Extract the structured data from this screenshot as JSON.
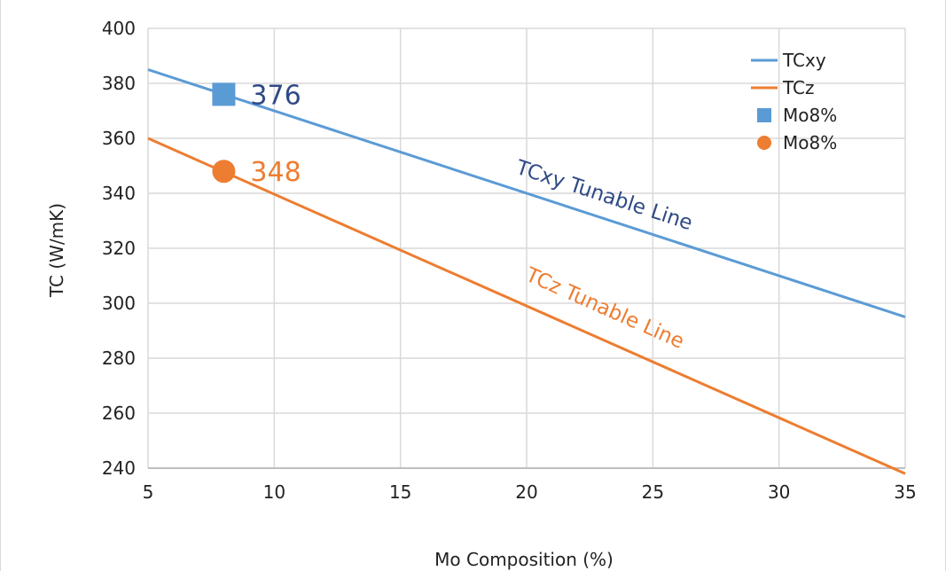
{
  "chart_data": {
    "type": "line",
    "xlabel": "Mo Composition (%)",
    "ylabel": "TC  (W/mK)",
    "xlim": [
      5,
      35
    ],
    "ylim": [
      240,
      400
    ],
    "x_ticks": [
      "5",
      "10",
      "15",
      "20",
      "25",
      "30",
      "35"
    ],
    "y_ticks": [
      "240",
      "260",
      "280",
      "300",
      "320",
      "340",
      "360",
      "380",
      "400"
    ],
    "grid": true,
    "legend_position": "top-right",
    "colors": {
      "tcxy": "#5b9bd5",
      "tcz": "#ed7d31",
      "tcxy_label": "#2f4a86",
      "axis": "#222222",
      "grid": "#d9d9d9"
    },
    "series": [
      {
        "name": "TCxy",
        "kind": "line",
        "x": [
          5,
          35
        ],
        "y": [
          385,
          295
        ]
      },
      {
        "name": "TCz",
        "kind": "line",
        "x": [
          5,
          35
        ],
        "y": [
          360,
          238
        ]
      },
      {
        "name": "Mo8%",
        "kind": "point",
        "marker": "square",
        "x": [
          8
        ],
        "y": [
          376
        ],
        "label": "376"
      },
      {
        "name": "Mo8%",
        "kind": "point",
        "marker": "circle",
        "x": [
          8
        ],
        "y": [
          348
        ],
        "label": "348"
      }
    ],
    "annotations": [
      {
        "text": "TCxy Tunable Line",
        "x": 23,
        "y": 337
      },
      {
        "text": "TCz Tunable Line",
        "x": 23,
        "y": 296
      }
    ]
  }
}
